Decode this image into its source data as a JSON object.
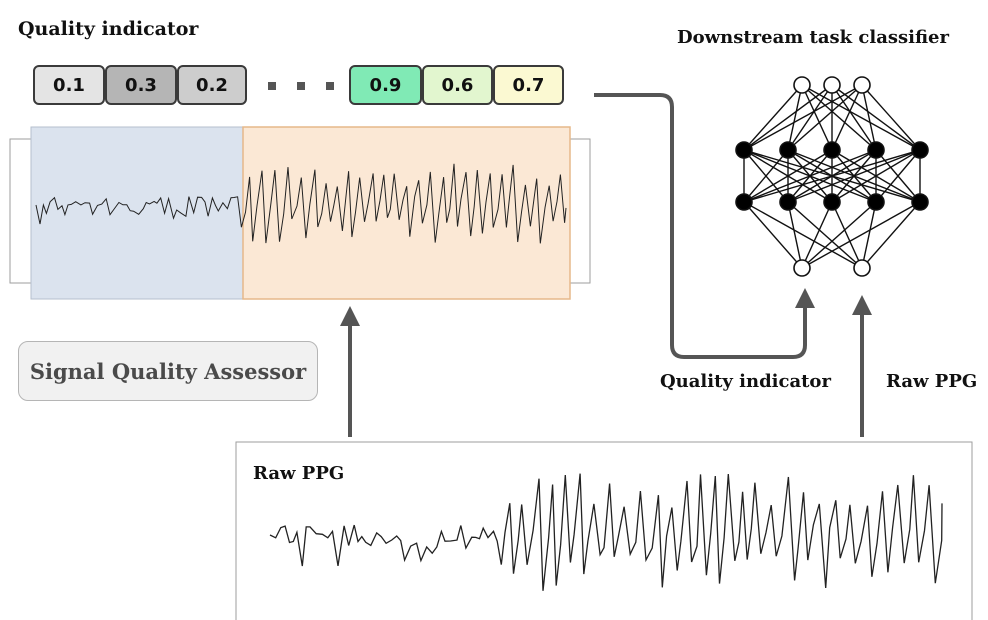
{
  "title_quality": "Quality indicator",
  "title_classifier": "Downstream task classifier",
  "assessor_label": "Signal Quality Assessor",
  "arrow_label_quality": "Quality indicator",
  "arrow_label_raw": "Raw PPG",
  "raw_panel_label": "Raw PPG",
  "scores": [
    {
      "value": "0.1",
      "color": "#e4e4e4"
    },
    {
      "value": "0.3",
      "color": "#b5b5b5"
    },
    {
      "value": "0.2",
      "color": "#cdcdcd"
    },
    {
      "value": "0.9",
      "color": "#80eab5"
    },
    {
      "value": "0.6",
      "color": "#e2f6cf"
    },
    {
      "value": "0.7",
      "color": "#fbf9d2"
    }
  ],
  "colors": {
    "low_quality_window": "#dbe3ee",
    "high_quality_window": "#fbe8d5",
    "high_quality_border": "#e6b88a",
    "arrow": "#555555"
  }
}
